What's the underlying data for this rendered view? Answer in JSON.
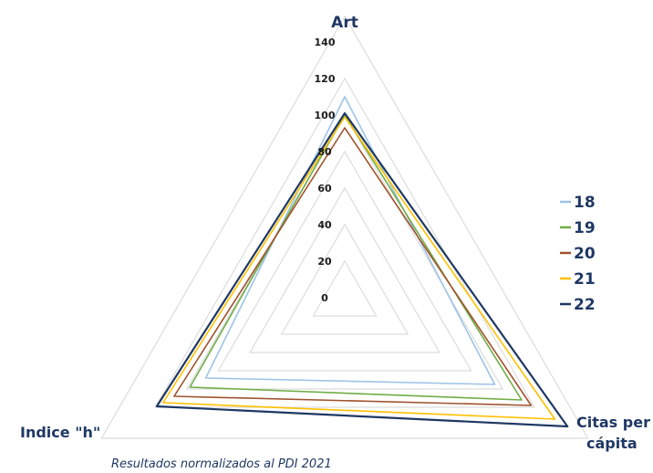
{
  "chart_data": {
    "type": "radar",
    "axes": [
      "Art",
      "Citas per cápita",
      "Indice \"h\""
    ],
    "axis_labels": {
      "top": "Art",
      "right_line1": "Citas per",
      "right_line2": "cápita",
      "left": "Indice \"h\""
    },
    "rlim": [
      0,
      140
    ],
    "ticks": [
      "0",
      "20",
      "40",
      "60",
      "80",
      "100",
      "120",
      "140"
    ],
    "tick_values": [
      0,
      20,
      40,
      60,
      80,
      100,
      120,
      140
    ],
    "grid": true,
    "legend_position": "right",
    "series": [
      {
        "name": "18",
        "color": "#9dc3e6",
        "values": [
          110,
          95,
          88
        ]
      },
      {
        "name": "19",
        "color": "#70ad47",
        "values": [
          100,
          112,
          98
        ]
      },
      {
        "name": "20",
        "color": "#a0522d",
        "values": [
          93,
          118,
          108
        ]
      },
      {
        "name": "21",
        "color": "#ffc000",
        "values": [
          99,
          133,
          115
        ]
      },
      {
        "name": "22",
        "color": "#1f3864",
        "values": [
          101,
          141,
          119
        ]
      }
    ],
    "footnote": "Resultados normalizados al PDI 2021"
  }
}
